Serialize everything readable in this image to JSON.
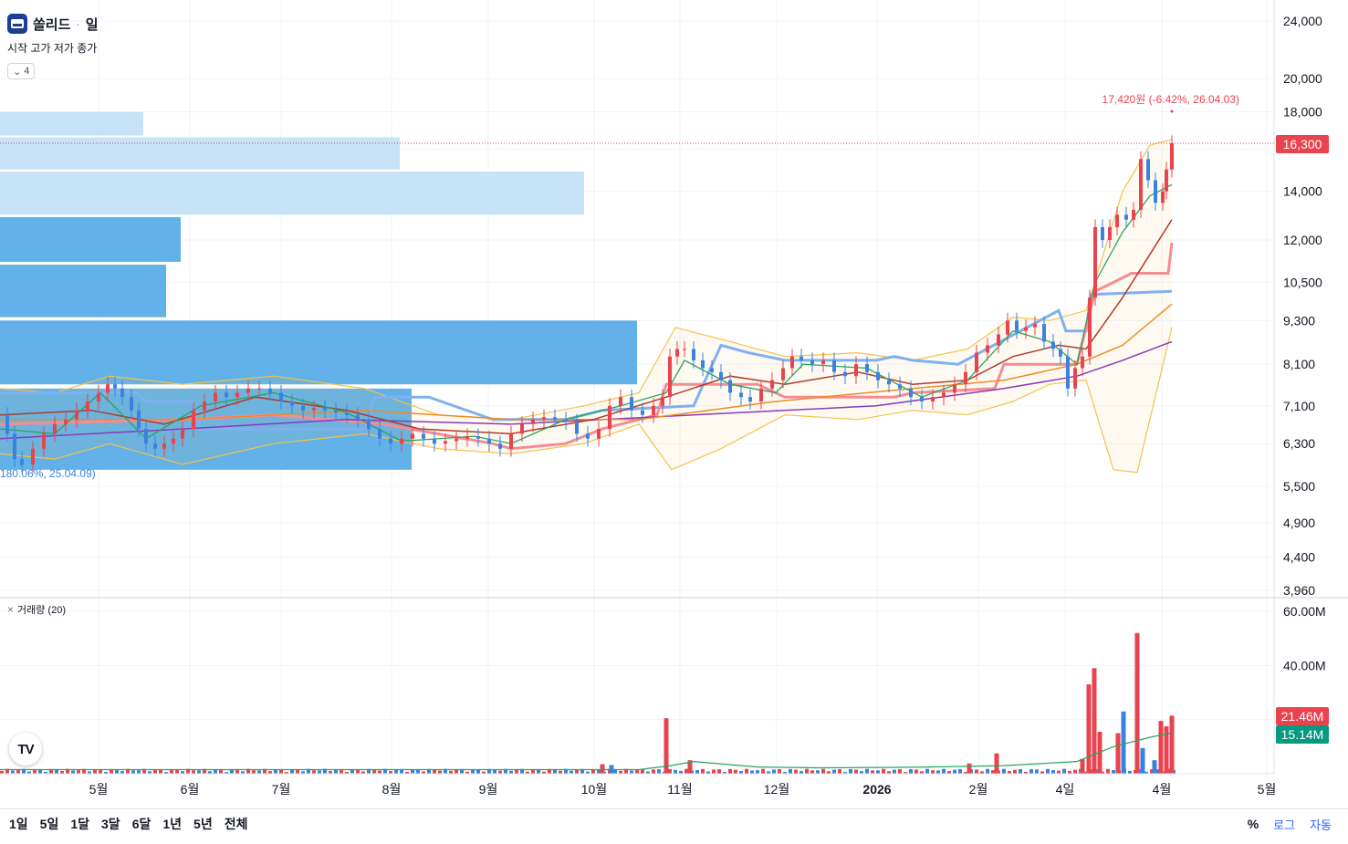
{
  "header": {
    "symbol": "쏠리드",
    "separator": "·",
    "interval": "일",
    "ohlc_labels": "시작 고가 저가 종가",
    "indicator_count": "4",
    "collapse_icon": "chevron-down-icon"
  },
  "volume_legend": {
    "label": "거래량 (20)"
  },
  "annotations": {
    "high_label": "17,420원 (-6.42%, 26.04.03)",
    "low_label": "180.06%, 25.04.09)"
  },
  "price_tags": {
    "last_price": "16,300",
    "volume": "21.46M",
    "volume_ma": "15.14M"
  },
  "toolbar": {
    "ranges": [
      "1일",
      "5일",
      "1달",
      "3달",
      "6달",
      "1년",
      "5년",
      "전체"
    ],
    "percent": "%",
    "log": "로그",
    "auto": "자동"
  },
  "colors": {
    "up": "#e8434f",
    "down": "#3b82e0",
    "ma5": "#26a65b",
    "ma20": "#b23a2a",
    "ma60": "#f08a24",
    "ma120": "#8a3ab9",
    "bollinger": "#f3c24a",
    "ichimoku_red": "#f48c94",
    "ichimoku_blue": "#7fb0f0",
    "profile_light": "#c6e2f7",
    "profile_dark": "#5aaee8",
    "volume_ma": "#26a65b",
    "last_price_tag": "#e8434f",
    "volume_ma_tag": "#089981"
  },
  "chart_data": {
    "type": "line",
    "price_scale": "log",
    "price_ticks": [
      "24,000",
      "20,000",
      "18,000",
      "16,000",
      "14,000",
      "12,000",
      "10,500",
      "9,300",
      "8,100",
      "7,100",
      "6,300",
      "5,500",
      "4,900",
      "4,400",
      "3,960"
    ],
    "volume_ticks": [
      "60.00M",
      "40.00M"
    ],
    "x_ticks": [
      "5월",
      "6월",
      "7월",
      "8월",
      "9월",
      "10월",
      "11월",
      "12월",
      "2026",
      "2월",
      "4일",
      "4월",
      "5월"
    ],
    "close_path": [
      [
        0,
        6900
      ],
      [
        8,
        6500
      ],
      [
        16,
        6000
      ],
      [
        24,
        5900
      ],
      [
        36,
        6200
      ],
      [
        48,
        6500
      ],
      [
        60,
        6700
      ],
      [
        72,
        6800
      ],
      [
        84,
        7000
      ],
      [
        96,
        7200
      ],
      [
        108,
        7400
      ],
      [
        118,
        7600
      ],
      [
        126,
        7500
      ],
      [
        134,
        7300
      ],
      [
        144,
        7000
      ],
      [
        152,
        6600
      ],
      [
        160,
        6300
      ],
      [
        170,
        6200
      ],
      [
        180,
        6300
      ],
      [
        190,
        6400
      ],
      [
        200,
        6600
      ],
      [
        212,
        7000
      ],
      [
        224,
        7200
      ],
      [
        236,
        7400
      ],
      [
        248,
        7300
      ],
      [
        260,
        7400
      ],
      [
        272,
        7500
      ],
      [
        284,
        7500
      ],
      [
        296,
        7400
      ],
      [
        308,
        7200
      ],
      [
        320,
        7100
      ],
      [
        332,
        7000
      ],
      [
        344,
        7050
      ],
      [
        356,
        7000
      ],
      [
        368,
        6950
      ],
      [
        380,
        6900
      ],
      [
        392,
        6800
      ],
      [
        404,
        6600
      ],
      [
        416,
        6400
      ],
      [
        428,
        6300
      ],
      [
        440,
        6400
      ],
      [
        452,
        6500
      ],
      [
        464,
        6400
      ],
      [
        476,
        6300
      ],
      [
        488,
        6350
      ],
      [
        500,
        6400
      ],
      [
        512,
        6450
      ],
      [
        524,
        6400
      ],
      [
        536,
        6300
      ],
      [
        548,
        6200
      ],
      [
        560,
        6500
      ],
      [
        572,
        6700
      ],
      [
        584,
        6800
      ],
      [
        596,
        6850
      ],
      [
        608,
        6800
      ],
      [
        620,
        6750
      ],
      [
        632,
        6500
      ],
      [
        644,
        6400
      ],
      [
        656,
        6600
      ],
      [
        668,
        7100
      ],
      [
        680,
        7300
      ],
      [
        692,
        7000
      ],
      [
        704,
        6900
      ],
      [
        716,
        7100
      ],
      [
        726,
        7300
      ],
      [
        734,
        8300
      ],
      [
        742,
        8500
      ],
      [
        750,
        8500
      ],
      [
        760,
        8200
      ],
      [
        770,
        8000
      ],
      [
        780,
        7900
      ],
      [
        790,
        7700
      ],
      [
        800,
        7400
      ],
      [
        812,
        7300
      ],
      [
        822,
        7200
      ],
      [
        834,
        7500
      ],
      [
        846,
        7700
      ],
      [
        858,
        8000
      ],
      [
        868,
        8300
      ],
      [
        878,
        8200
      ],
      [
        890,
        8100
      ],
      [
        902,
        8200
      ],
      [
        914,
        7900
      ],
      [
        926,
        7800
      ],
      [
        938,
        8100
      ],
      [
        950,
        7900
      ],
      [
        962,
        7700
      ],
      [
        974,
        7600
      ],
      [
        986,
        7500
      ],
      [
        998,
        7300
      ],
      [
        1010,
        7200
      ],
      [
        1022,
        7300
      ],
      [
        1034,
        7400
      ],
      [
        1046,
        7600
      ],
      [
        1058,
        7900
      ],
      [
        1070,
        8400
      ],
      [
        1082,
        8600
      ],
      [
        1094,
        8900
      ],
      [
        1104,
        9300
      ],
      [
        1114,
        9000
      ],
      [
        1124,
        9100
      ],
      [
        1134,
        9200
      ],
      [
        1144,
        8700
      ],
      [
        1154,
        8500
      ],
      [
        1162,
        8300
      ],
      [
        1170,
        7500
      ],
      [
        1178,
        8000
      ],
      [
        1186,
        8300
      ],
      [
        1194,
        10000
      ],
      [
        1200,
        12500
      ],
      [
        1208,
        12000
      ],
      [
        1216,
        12500
      ],
      [
        1224,
        13000
      ],
      [
        1234,
        12800
      ],
      [
        1242,
        13200
      ],
      [
        1250,
        15500
      ],
      [
        1258,
        14500
      ],
      [
        1266,
        13500
      ],
      [
        1274,
        14000
      ],
      [
        1278,
        15000
      ],
      [
        1284,
        16300
      ]
    ],
    "ma5": [
      [
        0,
        6600
      ],
      [
        60,
        6500
      ],
      [
        110,
        7400
      ],
      [
        160,
        6400
      ],
      [
        220,
        7100
      ],
      [
        300,
        7400
      ],
      [
        380,
        6950
      ],
      [
        440,
        6350
      ],
      [
        520,
        6450
      ],
      [
        560,
        6300
      ],
      [
        620,
        6800
      ],
      [
        680,
        7100
      ],
      [
        730,
        7400
      ],
      [
        750,
        8200
      ],
      [
        800,
        7600
      ],
      [
        850,
        7400
      ],
      [
        880,
        8100
      ],
      [
        950,
        8000
      ],
      [
        1010,
        7300
      ],
      [
        1060,
        7700
      ],
      [
        1110,
        9000
      ],
      [
        1150,
        8700
      ],
      [
        1180,
        8100
      ],
      [
        1200,
        10500
      ],
      [
        1230,
        12300
      ],
      [
        1260,
        13800
      ],
      [
        1284,
        14300
      ]
    ],
    "ma20": [
      [
        0,
        6900
      ],
      [
        100,
        7000
      ],
      [
        180,
        6700
      ],
      [
        280,
        7300
      ],
      [
        380,
        7000
      ],
      [
        460,
        6600
      ],
      [
        560,
        6500
      ],
      [
        650,
        6800
      ],
      [
        730,
        7300
      ],
      [
        800,
        7800
      ],
      [
        860,
        7600
      ],
      [
        940,
        7900
      ],
      [
        1000,
        7600
      ],
      [
        1060,
        7700
      ],
      [
        1110,
        8300
      ],
      [
        1160,
        8600
      ],
      [
        1190,
        8500
      ],
      [
        1230,
        10000
      ],
      [
        1284,
        12800
      ]
    ],
    "ma60": [
      [
        0,
        6800
      ],
      [
        200,
        6800
      ],
      [
        400,
        7000
      ],
      [
        560,
        6800
      ],
      [
        700,
        6800
      ],
      [
        850,
        7200
      ],
      [
        1000,
        7500
      ],
      [
        1100,
        7700
      ],
      [
        1180,
        8100
      ],
      [
        1230,
        8600
      ],
      [
        1284,
        9800
      ]
    ],
    "ma120": [
      [
        0,
        6400
      ],
      [
        200,
        6600
      ],
      [
        380,
        6800
      ],
      [
        560,
        6700
      ],
      [
        760,
        6900
      ],
      [
        960,
        7100
      ],
      [
        1100,
        7500
      ],
      [
        1180,
        7800
      ],
      [
        1230,
        8200
      ],
      [
        1284,
        8700
      ]
    ],
    "bb_upper": [
      [
        0,
        7500
      ],
      [
        60,
        7400
      ],
      [
        120,
        7800
      ],
      [
        200,
        7600
      ],
      [
        300,
        7800
      ],
      [
        400,
        7500
      ],
      [
        480,
        6900
      ],
      [
        560,
        6800
      ],
      [
        640,
        7100
      ],
      [
        700,
        7400
      ],
      [
        740,
        9100
      ],
      [
        800,
        8700
      ],
      [
        860,
        8300
      ],
      [
        940,
        8400
      ],
      [
        1000,
        8200
      ],
      [
        1060,
        8500
      ],
      [
        1110,
        9400
      ],
      [
        1150,
        9300
      ],
      [
        1190,
        9600
      ],
      [
        1230,
        14000
      ],
      [
        1260,
        16200
      ],
      [
        1284,
        16500
      ]
    ],
    "bb_lower": [
      [
        0,
        6100
      ],
      [
        60,
        6000
      ],
      [
        120,
        6300
      ],
      [
        200,
        5900
      ],
      [
        300,
        6300
      ],
      [
        400,
        6500
      ],
      [
        480,
        6200
      ],
      [
        560,
        6100
      ],
      [
        640,
        6300
      ],
      [
        700,
        6700
      ],
      [
        736,
        5800
      ],
      [
        790,
        6200
      ],
      [
        860,
        6900
      ],
      [
        940,
        6800
      ],
      [
        1000,
        7000
      ],
      [
        1060,
        6900
      ],
      [
        1110,
        7200
      ],
      [
        1150,
        7600
      ],
      [
        1190,
        7700
      ],
      [
        1220,
        5800
      ],
      [
        1246,
        5750
      ],
      [
        1284,
        9100
      ]
    ],
    "ichimoku_red": [
      [
        0,
        6700
      ],
      [
        200,
        6800
      ],
      [
        300,
        6900
      ],
      [
        420,
        6700
      ],
      [
        540,
        6300
      ],
      [
        560,
        6200
      ],
      [
        620,
        6300
      ],
      [
        660,
        6600
      ],
      [
        720,
        6900
      ],
      [
        730,
        7600
      ],
      [
        830,
        7600
      ],
      [
        860,
        7300
      ],
      [
        980,
        7300
      ],
      [
        1000,
        7400
      ],
      [
        1090,
        7500
      ],
      [
        1100,
        8100
      ],
      [
        1180,
        8100
      ],
      [
        1200,
        10200
      ],
      [
        1240,
        10800
      ],
      [
        1280,
        10800
      ],
      [
        1284,
        11900
      ]
    ],
    "ichimoku_blue": [
      [
        0,
        7400
      ],
      [
        150,
        7400
      ],
      [
        160,
        7200
      ],
      [
        210,
        7200
      ],
      [
        220,
        6600
      ],
      [
        400,
        6600
      ],
      [
        410,
        7300
      ],
      [
        470,
        7300
      ],
      [
        540,
        6800
      ],
      [
        620,
        6800
      ],
      [
        660,
        7000
      ],
      [
        760,
        7100
      ],
      [
        790,
        8600
      ],
      [
        820,
        8400
      ],
      [
        860,
        8200
      ],
      [
        960,
        8200
      ],
      [
        980,
        8300
      ],
      [
        1000,
        8200
      ],
      [
        1050,
        8100
      ],
      [
        1160,
        9600
      ],
      [
        1168,
        9000
      ],
      [
        1190,
        9000
      ],
      [
        1195,
        10100
      ],
      [
        1284,
        10200
      ]
    ],
    "volume_profile": [
      {
        "price_top": 18000,
        "price_bottom": 16700,
        "length": 157,
        "shade": "light"
      },
      {
        "price_top": 16600,
        "price_bottom": 15000,
        "length": 438,
        "shade": "light"
      },
      {
        "price_top": 14900,
        "price_bottom": 13000,
        "length": 640,
        "shade": "light"
      },
      {
        "price_top": 12900,
        "price_bottom": 11200,
        "length": 198,
        "shade": "dark"
      },
      {
        "price_top": 11100,
        "price_bottom": 9400,
        "length": 182,
        "shade": "dark"
      },
      {
        "price_top": 9300,
        "price_bottom": 7600,
        "length": 698,
        "shade": "dark"
      },
      {
        "price_top": 7500,
        "price_bottom": 5800,
        "length": 451,
        "shade": "dark"
      }
    ],
    "volume_spikes": [
      {
        "x": 730,
        "value": 20.5,
        "up": true
      },
      {
        "x": 660,
        "value": 3.5,
        "up": true
      },
      {
        "x": 670,
        "value": 3.2,
        "up": false
      },
      {
        "x": 756,
        "value": 5.0,
        "up": true
      },
      {
        "x": 1092,
        "value": 7.5,
        "up": true
      },
      {
        "x": 1062,
        "value": 3.8,
        "up": true
      },
      {
        "x": 1186,
        "value": 5.5,
        "up": true
      },
      {
        "x": 1193,
        "value": 33,
        "up": true
      },
      {
        "x": 1199,
        "value": 39,
        "up": true
      },
      {
        "x": 1205,
        "value": 15.5,
        "up": true
      },
      {
        "x": 1225,
        "value": 15,
        "up": true
      },
      {
        "x": 1231,
        "value": 23,
        "up": false
      },
      {
        "x": 1246,
        "value": 52,
        "up": true
      },
      {
        "x": 1252,
        "value": 9.5,
        "up": false
      },
      {
        "x": 1265,
        "value": 5,
        "up": false
      },
      {
        "x": 1272,
        "value": 19.5,
        "up": true
      },
      {
        "x": 1278,
        "value": 17.5,
        "up": true
      },
      {
        "x": 1284,
        "value": 21.46,
        "up": true
      }
    ],
    "volume_ma_path": [
      [
        0,
        1.5
      ],
      [
        700,
        1.5
      ],
      [
        735,
        3.0
      ],
      [
        760,
        4.5
      ],
      [
        830,
        2.5
      ],
      [
        900,
        2.2
      ],
      [
        1000,
        2.4
      ],
      [
        1100,
        3.0
      ],
      [
        1180,
        4.5
      ],
      [
        1220,
        10
      ],
      [
        1260,
        13.5
      ],
      [
        1284,
        15.14
      ]
    ],
    "current_price": 16300,
    "annotation_high_price": 17420,
    "annotation_low_price": 5800
  }
}
